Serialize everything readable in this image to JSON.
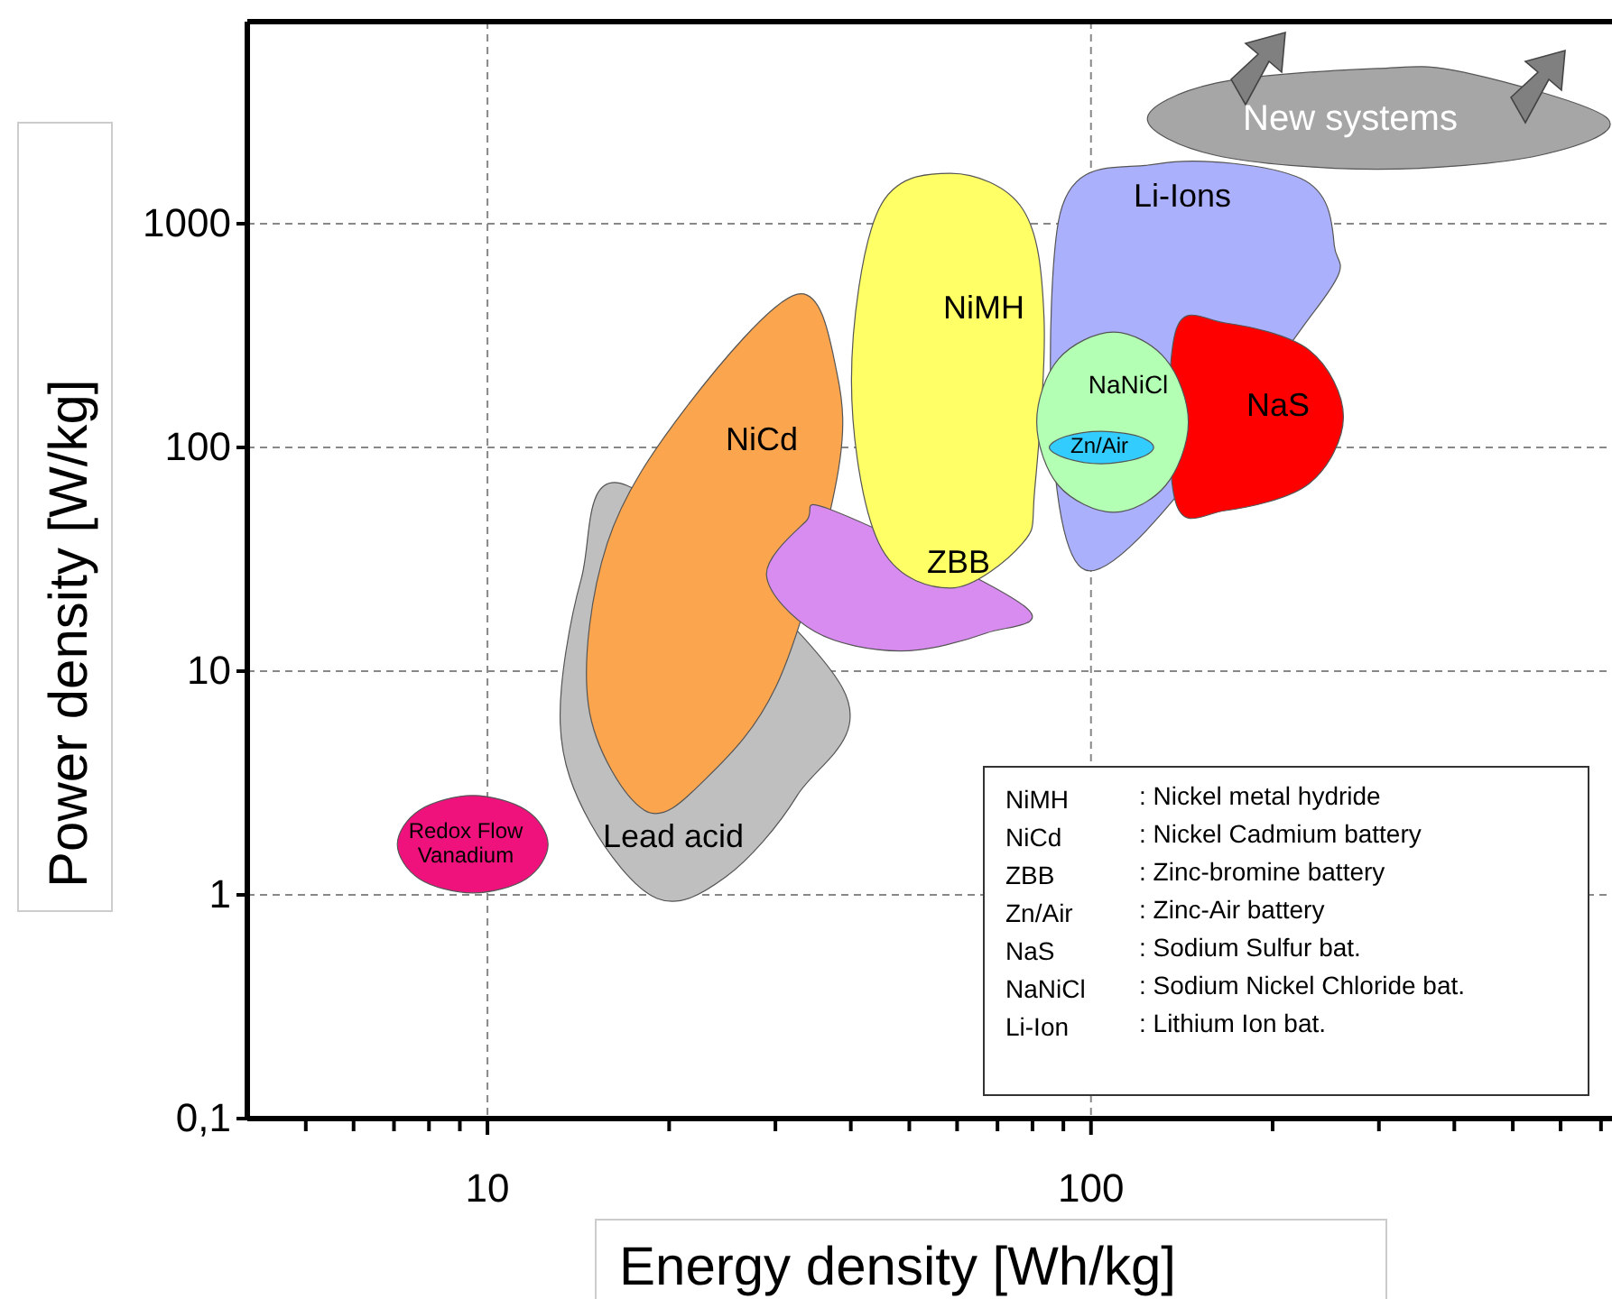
{
  "chart_data": {
    "type": "area",
    "xlabel": "Energy density [Wh/kg]",
    "ylabel": "Power density [W/kg]",
    "log": "xy",
    "grid": true,
    "xlim": [
      4,
      730
    ],
    "ylim": [
      0.1,
      8000
    ],
    "xticks": [
      {
        "value": 5,
        "label": null
      },
      {
        "value": 6,
        "label": null
      },
      {
        "value": 7,
        "label": null
      },
      {
        "value": 8,
        "label": null
      },
      {
        "value": 9,
        "label": null
      },
      10,
      {
        "value": 20,
        "label": null
      },
      {
        "value": 30,
        "label": null
      },
      {
        "value": 40,
        "label": null
      },
      {
        "value": 50,
        "label": null
      },
      {
        "value": 60,
        "label": null
      },
      {
        "value": 70,
        "label": null
      },
      {
        "value": 80,
        "label": null
      },
      {
        "value": 90,
        "label": null
      },
      100,
      {
        "value": 200,
        "label": null
      },
      {
        "value": 300,
        "label": null
      },
      {
        "value": 400,
        "label": null
      },
      {
        "value": 500,
        "label": null
      },
      {
        "value": 600,
        "label": null
      },
      {
        "value": 700,
        "label": null
      }
    ],
    "yticks": [
      {
        "value": 0.1,
        "label": "0,1"
      },
      1,
      10,
      100,
      1000
    ],
    "series": [
      {
        "name": "Li-Ions",
        "color": "#aab0fb",
        "x": [
          88.3,
          129,
          223,
          253,
          234,
          97.9
        ],
        "values": [
          1020,
          1850,
          1590,
          800,
          403,
          28.3
        ]
      },
      {
        "name": "Lead acid",
        "color": "#bfbfbf",
        "x": [
          19.1,
          14.8,
          13.2,
          14.3,
          17.0,
          38.7,
          32.6,
          24.8
        ],
        "values": [
          0.964,
          2.1,
          5.84,
          25.8,
          67.7,
          8.46,
          2.78,
          1.2
        ]
      },
      {
        "name": "NiCd",
        "color": "#fba54e",
        "x": [
          18.2,
          14.7,
          15.8,
          21.3,
          32.6,
          37.9,
          37.9,
          30.5,
          23.1
        ],
        "values": [
          2.39,
          7.03,
          37.4,
          150,
          484,
          218,
          71.6,
          9.29,
          3.34
        ]
      },
      {
        "name": "ZBB",
        "color": "#d98cf0",
        "x": [
          77.6,
          67.1,
          48.3,
          34.9,
          29.0,
          33.7,
          37.4
        ],
        "values": [
          19.5,
          14.8,
          12.3,
          15.0,
          26.8,
          46.7,
          52.2
        ]
      },
      {
        "name": "NiMH",
        "color": "#ffff66",
        "x": [
          58.5,
          77.1,
          83.6,
          80.7,
          77.1,
          58.5,
          44.5,
          40.1,
          44.5
        ],
        "values": [
          1680,
          1160,
          381,
          65.3,
          37.4,
          23.5,
          37.4,
          199,
          1160
        ]
      },
      {
        "name": "NaS",
        "color": "#ff0000",
        "x": [
          138,
          167,
          230,
          262,
          230,
          167,
          138
        ],
        "values": [
          328,
          360,
          272,
          137,
          69.0,
          52.2,
          57.3
        ]
      },
      {
        "name": "NaNiCl",
        "color": "#b3ffb3",
        "x": [
          109,
          133,
          145,
          133,
          109,
          88.3,
          81.3,
          88.3
        ],
        "values": [
          328,
          248,
          130,
          67.7,
          51.3,
          67.7,
          130,
          248
        ]
      },
      {
        "name": "Zn/Air",
        "color": "#33ccff",
        "x": [
          104,
          120,
          127,
          120,
          104,
          90.8,
          85.3,
          90.8
        ],
        "values": [
          118,
          112,
          100,
          89.5,
          84.5,
          89.5,
          100,
          112
        ]
      },
      {
        "name": "Redox Flow Vanadium",
        "color": "#f0127c",
        "x": [
          9.46,
          11.6,
          12.6,
          11.6,
          9.46,
          7.71,
          7.09,
          7.71
        ],
        "values": [
          2.78,
          2.39,
          1.68,
          1.18,
          1.02,
          1.18,
          1.68,
          2.39
        ]
      },
      {
        "name": "New systems",
        "color": "#a6a6a6",
        "x": [
          298,
          415,
          719,
          553,
          298,
          161,
          124,
          161
        ],
        "values": [
          4940,
          4750,
          2940,
          2020,
          1750,
          2020,
          2940,
          4250
        ]
      }
    ],
    "annotations": [
      "NiMH : Nickel metal hydride",
      "NiCd : Nickel Cadmium battery",
      "ZBB : Zinc-bromine battery",
      "Zn/Air : Zinc-Air battery",
      "NaS : Sodium Sulfur bat.",
      "NaNiCl : Sodium Nickel Chloride bat.",
      "Li-Ion : Lithium Ion bat."
    ]
  }
}
